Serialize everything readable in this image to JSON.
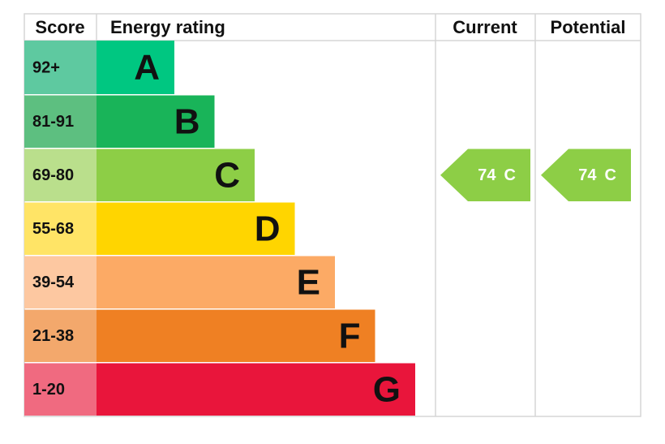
{
  "header": {
    "score": "Score",
    "energy_rating": "Energy rating",
    "current": "Current",
    "potential": "Potential"
  },
  "bands": [
    {
      "range": "92+",
      "letter": "A"
    },
    {
      "range": "81-91",
      "letter": "B"
    },
    {
      "range": "69-80",
      "letter": "C"
    },
    {
      "range": "55-68",
      "letter": "D"
    },
    {
      "range": "39-54",
      "letter": "E"
    },
    {
      "range": "21-38",
      "letter": "F"
    },
    {
      "range": "1-20",
      "letter": "G"
    }
  ],
  "current": {
    "score": 74,
    "band": "C"
  },
  "potential": {
    "score": 74,
    "band": "C"
  }
}
